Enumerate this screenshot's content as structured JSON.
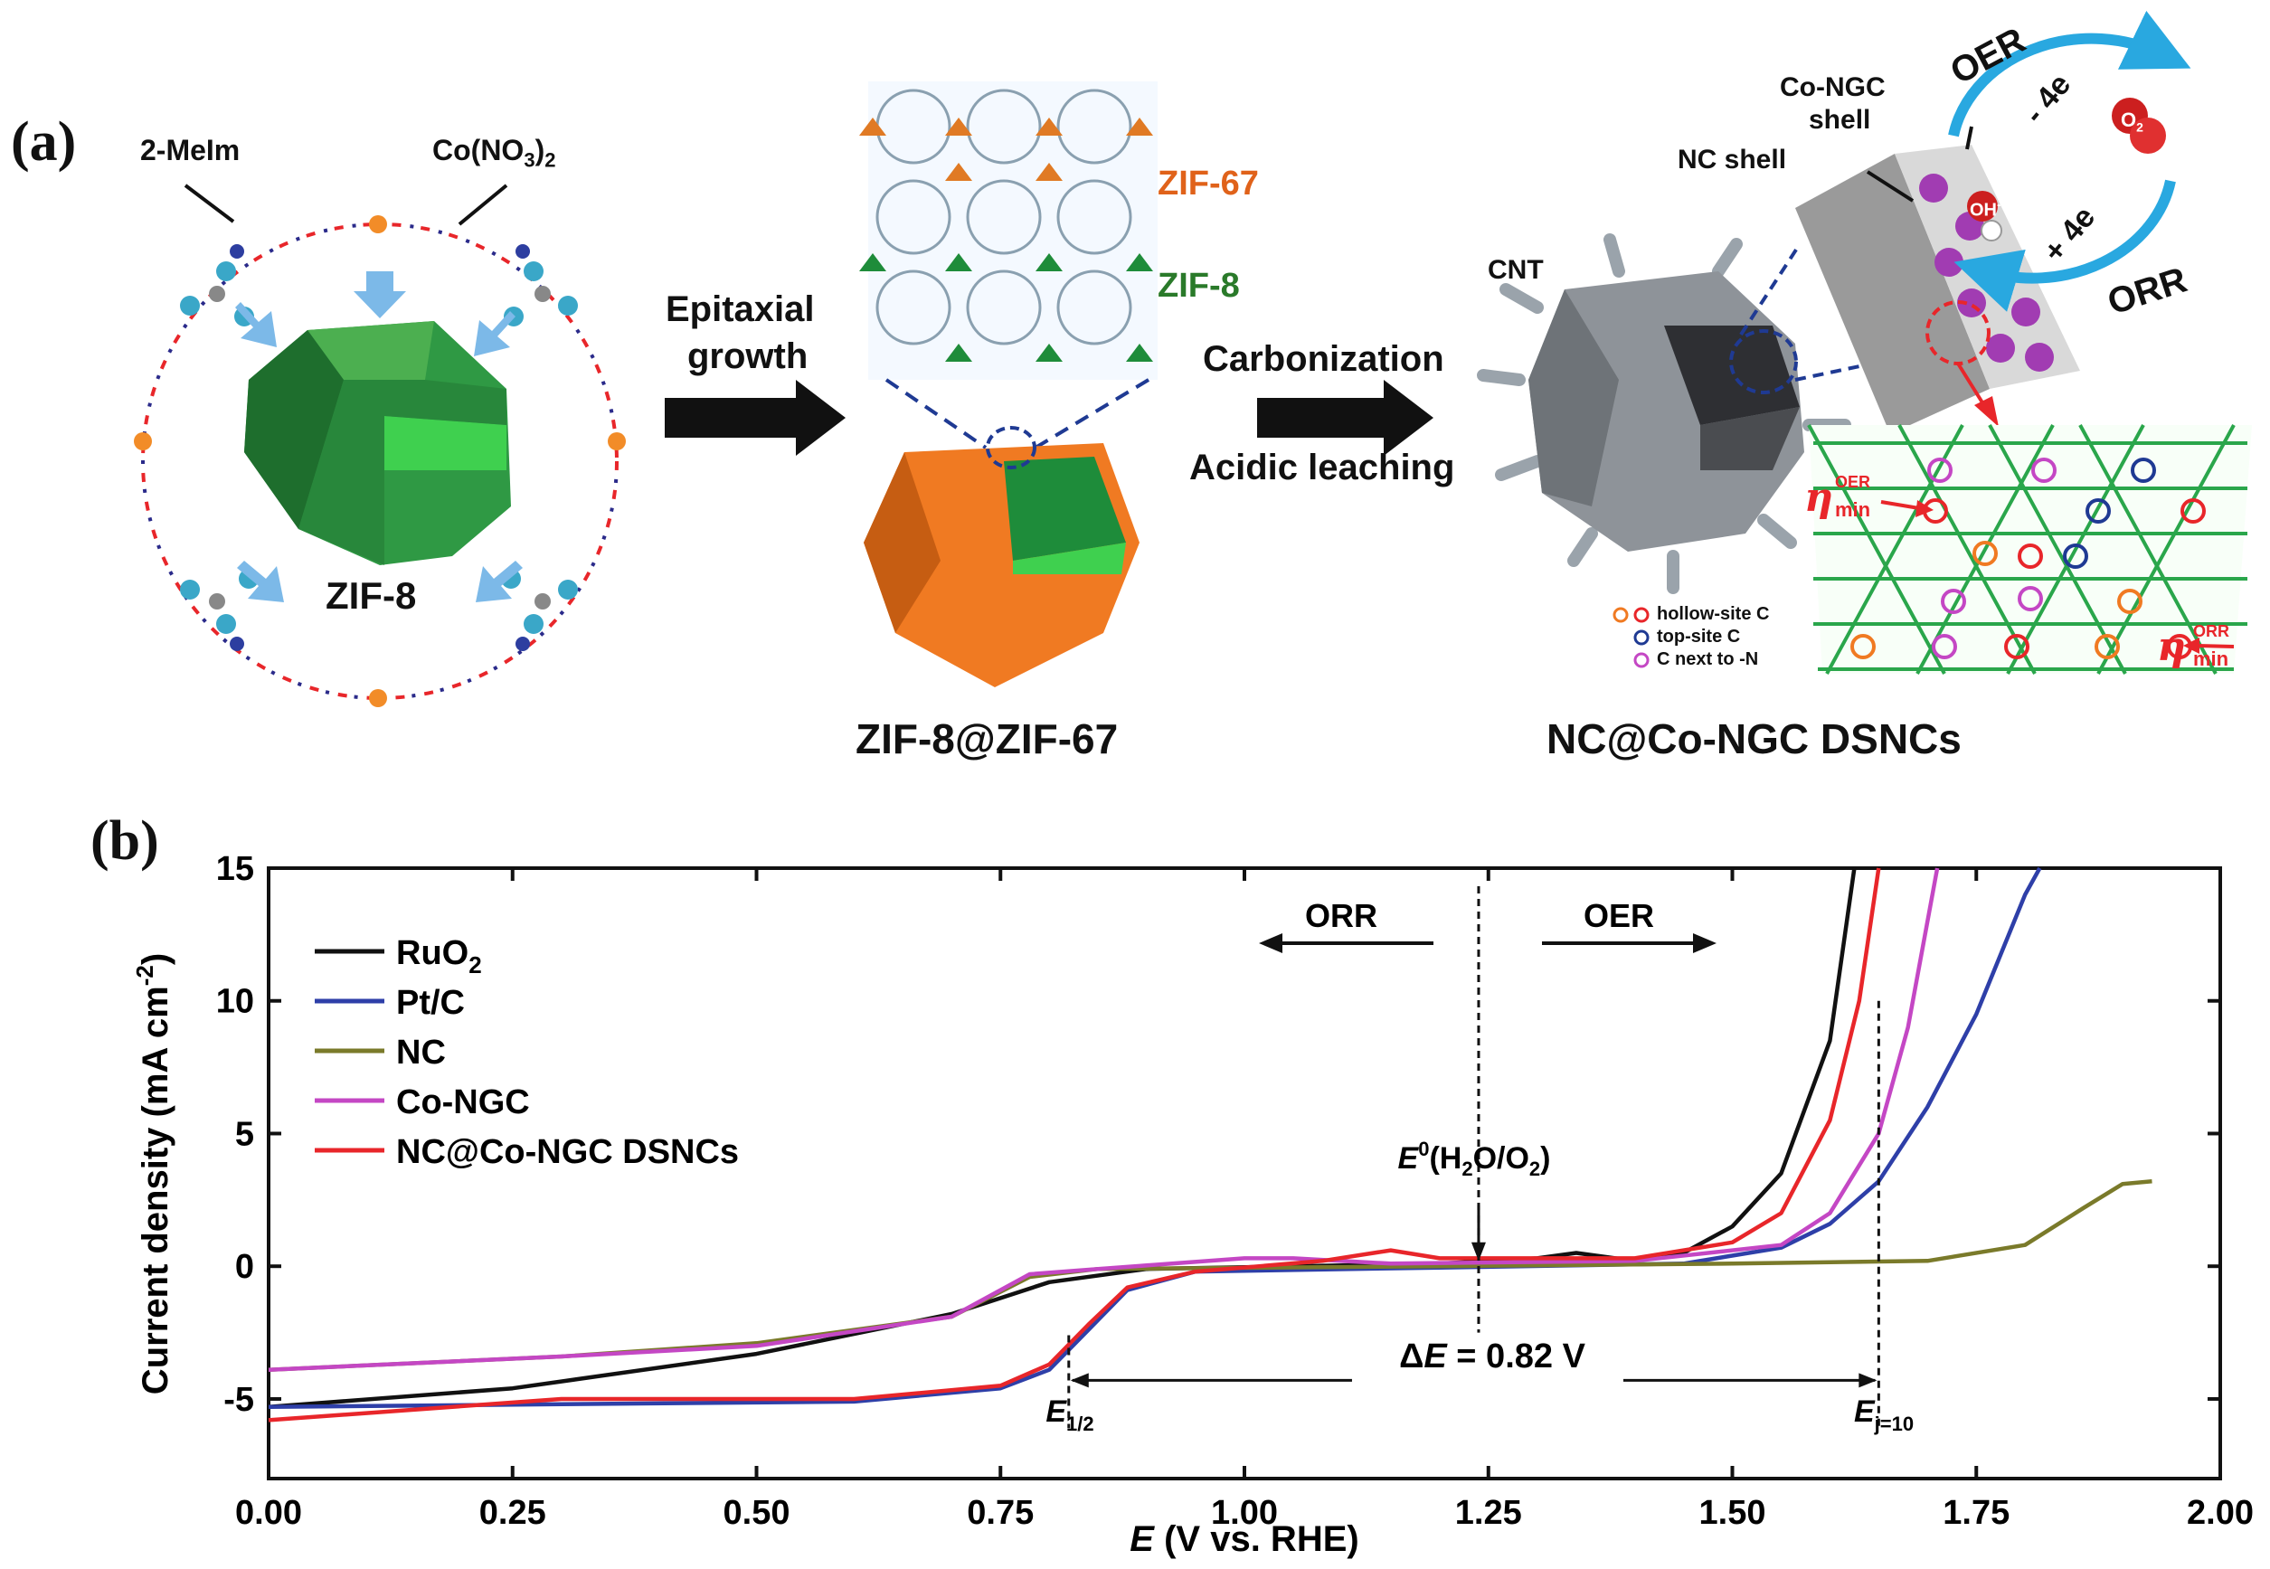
{
  "panel_a": {
    "label": "(a)",
    "reagent_left": "2-MeIm",
    "reagent_right_main": "Co(NO",
    "reagent_right_sub1": "3",
    "reagent_right_close": ")",
    "reagent_right_sub2": "2",
    "crystal_label": "ZIF-8",
    "step1_line1": "Epitaxial",
    "step1_line2": "growth",
    "framework_top": "ZIF-67",
    "framework_bottom": "ZIF-8",
    "core_shell_label": "ZIF-8@ZIF-67",
    "step2_line1": "Carbonization",
    "step2_line2": "Acidic leaching",
    "cnt_label": "CNT",
    "nc_shell_label": "NC shell",
    "co_shell_line1": "Co-NGC",
    "co_shell_line2": "shell",
    "product_label": "NC@Co-NGC DSNCs",
    "cycle_top": "OER",
    "cycle_bottom": "ORR",
    "cycle_minus": "- 4e",
    "cycle_plus": "+ 4e",
    "o2": "O",
    "o2_sub": "2",
    "oh": "OH",
    "oh_sup": "-",
    "eta_symbol": "η",
    "eta_oer_sup": "OER",
    "eta_oer_sub": "min",
    "eta_orr_sup": "ORR",
    "eta_orr_sub": "min",
    "site_legend": [
      "hollow-site C",
      "top-site C",
      "C next to -N"
    ],
    "colors": {
      "zif8": "#1e8c3a",
      "zif67": "#f07a22",
      "cycle": "#29a8e0",
      "accent": "#e8262a",
      "navy": "#1f3a93"
    }
  },
  "panel_b": {
    "label": "(b)",
    "chart_data": {
      "type": "line",
      "xlabel_italic": "E",
      "xlabel_rest": " (V vs. RHE)",
      "ylabel_main": "Current density (mA cm",
      "ylabel_sup": "-2",
      "ylabel_close": ")",
      "xlim": [
        0.0,
        2.0
      ],
      "ylim": [
        -8,
        15
      ],
      "xticks": [
        0.0,
        0.25,
        0.5,
        0.75,
        1.0,
        1.25,
        1.5,
        1.75,
        2.0
      ],
      "xtick_labels": [
        "0.00",
        "0.25",
        "0.50",
        "0.75",
        "1.00",
        "1.25",
        "1.50",
        "1.75",
        "2.00"
      ],
      "yticks": [
        -5,
        0,
        5,
        10,
        15
      ],
      "ytick_labels": [
        "-5",
        "0",
        "5",
        "10",
        "15"
      ],
      "series": [
        {
          "name": "RuO",
          "name_sub": "2",
          "color": "#111111",
          "points": [
            [
              0.0,
              -5.3
            ],
            [
              0.25,
              -4.6
            ],
            [
              0.5,
              -3.3
            ],
            [
              0.7,
              -1.8
            ],
            [
              0.8,
              -0.6
            ],
            [
              0.9,
              -0.1
            ],
            [
              1.2,
              0.1
            ],
            [
              1.3,
              0.3
            ],
            [
              1.34,
              0.5
            ],
            [
              1.4,
              0.2
            ],
            [
              1.45,
              0.5
            ],
            [
              1.5,
              1.5
            ],
            [
              1.55,
              3.5
            ],
            [
              1.6,
              8.5
            ],
            [
              1.625,
              15.0
            ]
          ]
        },
        {
          "name": "Pt/C",
          "name_sub": "",
          "color": "#2e3fa8",
          "points": [
            [
              0.0,
              -5.3
            ],
            [
              0.3,
              -5.2
            ],
            [
              0.6,
              -5.1
            ],
            [
              0.75,
              -4.6
            ],
            [
              0.8,
              -3.9
            ],
            [
              0.84,
              -2.4
            ],
            [
              0.88,
              -0.9
            ],
            [
              0.95,
              -0.2
            ],
            [
              1.2,
              -0.05
            ],
            [
              1.45,
              0.1
            ],
            [
              1.55,
              0.7
            ],
            [
              1.6,
              1.6
            ],
            [
              1.65,
              3.2
            ],
            [
              1.7,
              6.0
            ],
            [
              1.75,
              9.5
            ],
            [
              1.8,
              14.0
            ],
            [
              1.815,
              15.0
            ]
          ]
        },
        {
          "name": "NC",
          "name_sub": "",
          "color": "#7a7a2a",
          "points": [
            [
              0.0,
              -3.9
            ],
            [
              0.3,
              -3.4
            ],
            [
              0.5,
              -2.9
            ],
            [
              0.7,
              -1.9
            ],
            [
              0.78,
              -0.4
            ],
            [
              0.85,
              -0.1
            ],
            [
              1.2,
              0.0
            ],
            [
              1.5,
              0.1
            ],
            [
              1.7,
              0.2
            ],
            [
              1.8,
              0.8
            ],
            [
              1.86,
              2.2
            ],
            [
              1.9,
              3.1
            ],
            [
              1.93,
              3.2
            ]
          ]
        },
        {
          "name": "Co-NGC",
          "name_sub": "",
          "color": "#c447c4",
          "points": [
            [
              0.0,
              -3.9
            ],
            [
              0.3,
              -3.4
            ],
            [
              0.5,
              -3.0
            ],
            [
              0.7,
              -1.9
            ],
            [
              0.78,
              -0.3
            ],
            [
              0.85,
              -0.1
            ],
            [
              1.0,
              0.3
            ],
            [
              1.05,
              0.3
            ],
            [
              1.15,
              0.1
            ],
            [
              1.4,
              0.2
            ],
            [
              1.55,
              0.8
            ],
            [
              1.6,
              2.0
            ],
            [
              1.65,
              5.0
            ],
            [
              1.68,
              9.0
            ],
            [
              1.7,
              13.0
            ],
            [
              1.71,
              15.0
            ]
          ]
        },
        {
          "name": "NC@Co-NGC DSNCs",
          "name_sub": "",
          "color": "#e8262a",
          "points": [
            [
              0.0,
              -5.8
            ],
            [
              0.3,
              -5.0
            ],
            [
              0.6,
              -5.0
            ],
            [
              0.75,
              -4.5
            ],
            [
              0.8,
              -3.7
            ],
            [
              0.84,
              -2.2
            ],
            [
              0.88,
              -0.8
            ],
            [
              0.95,
              -0.2
            ],
            [
              1.08,
              0.2
            ],
            [
              1.15,
              0.6
            ],
            [
              1.2,
              0.3
            ],
            [
              1.4,
              0.3
            ],
            [
              1.5,
              0.9
            ],
            [
              1.55,
              2.0
            ],
            [
              1.6,
              5.5
            ],
            [
              1.63,
              10.0
            ],
            [
              1.65,
              15.0
            ]
          ]
        }
      ],
      "annotations": {
        "orr_arrow": "ORR",
        "oer_arrow": "OER",
        "e0_italic": "E",
        "e0_sup": "0",
        "e0_rest": "(H",
        "e0_sub1": "2",
        "e0_rest2": "O/O",
        "e0_sub2": "2",
        "e0_close": ")",
        "delta_prefix": "Δ",
        "delta_italic": "E",
        "delta_value": " = 0.82 V",
        "e_half_italic": "E",
        "e_half_sub": "1/2",
        "e_j_italic": "E",
        "e_j_sub": "j=10",
        "e0_x": 1.24,
        "e_half_x": 0.82,
        "e_j_x": 1.65
      }
    }
  }
}
